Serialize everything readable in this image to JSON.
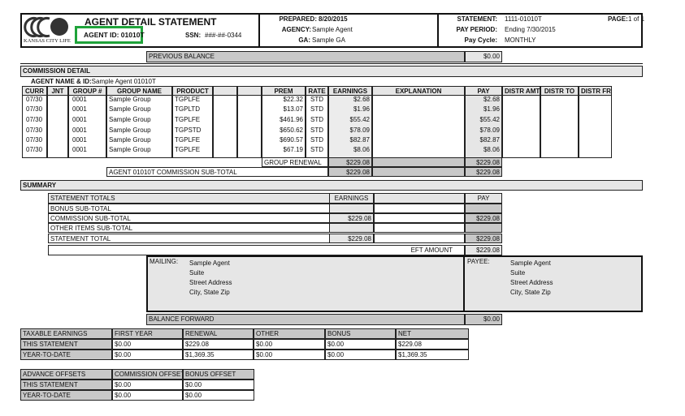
{
  "header": {
    "logo_text": "KANSAS CITY LIFE",
    "title": "AGENT DETAIL STATEMENT",
    "agent_id": "AGENT ID: 01010T",
    "ssn_label": "SSN:",
    "ssn_value": "###-##-0344",
    "prepared_label": "PREPARED:",
    "prepared_value": "8/20/2015",
    "agency_label": "AGENCY:",
    "agency_value": "Sample Agent",
    "ga_label": "GA:",
    "ga_value": "Sample GA",
    "statement_label": "STATEMENT:",
    "statement_value": "1111-01010T",
    "pay_period_label": "PAY PERIOD:",
    "pay_period_value": "Ending 7/30/2015",
    "pay_cycle_label": "Pay Cycle:",
    "pay_cycle_value": "MONTHLY",
    "page_label": "PAGE:",
    "page_value": "1 of 1",
    "highlight_color": "#1fa33a"
  },
  "previous_balance": {
    "label": "PREVIOUS BALANCE",
    "value": "$0.00"
  },
  "commission": {
    "section_title": "COMMISSION DETAIL",
    "agent_label": "AGENT NAME & ID:",
    "agent_value": "Sample Agent 01010T",
    "columns": [
      "CURR",
      "JNT",
      "GROUP #",
      "GROUP NAME",
      "PRODUCT",
      "",
      "",
      "PREM",
      "RATE",
      "EARNINGS",
      "EXPLANATION",
      "PAY",
      "DISTR AMT",
      "DISTR TO",
      "DISTR FR"
    ],
    "rows": [
      [
        "07/30",
        "",
        "0001",
        "Sample Group",
        "TGPLFE",
        "",
        "",
        "$22.32",
        "STD",
        "$2.68",
        "",
        "$2.68",
        "",
        "",
        ""
      ],
      [
        "07/30",
        "",
        "0001",
        "Sample Group",
        "TGPLTD",
        "",
        "",
        "$13.07",
        "STD",
        "$1.96",
        "",
        "$1.96",
        "",
        "",
        ""
      ],
      [
        "07/30",
        "",
        "0001",
        "Sample Group",
        "TGPLFE",
        "",
        "",
        "$461.96",
        "STD",
        "$55.42",
        "",
        "$55.42",
        "",
        "",
        ""
      ],
      [
        "07/30",
        "",
        "0001",
        "Sample Group",
        "TGPSTD",
        "",
        "",
        "$650.62",
        "STD",
        "$78.09",
        "",
        "$78.09",
        "",
        "",
        ""
      ],
      [
        "07/30",
        "",
        "0001",
        "Sample Group",
        "TGPLFE",
        "",
        "",
        "$690.57",
        "STD",
        "$82.87",
        "",
        "$82.87",
        "",
        "",
        ""
      ],
      [
        "07/30",
        "",
        "0001",
        "Sample Group",
        "TGPLFE",
        "",
        "",
        "$67.19",
        "STD",
        "$8.06",
        "",
        "$8.06",
        "",
        "",
        ""
      ]
    ],
    "group_renewal_label": "GROUP RENEWAL",
    "group_renewal_earnings": "$229.08",
    "group_renewal_pay": "$229.08",
    "subtotal_label": "AGENT 01010T COMMISSION SUB-TOTAL",
    "subtotal_earnings": "$229.08",
    "subtotal_pay": "$229.08"
  },
  "summary": {
    "section_title": "SUMMARY",
    "header": {
      "label": "STATEMENT TOTALS",
      "earnings": "EARNINGS",
      "pay": "PAY"
    },
    "rows": [
      {
        "label": "BONUS SUB-TOTAL",
        "earnings": "",
        "pay": ""
      },
      {
        "label": "COMMISSION SUB-TOTAL",
        "earnings": "$229.08",
        "pay": "$229.08"
      },
      {
        "label": "OTHER ITEMS SUB-TOTAL",
        "earnings": "",
        "pay": ""
      },
      {
        "label": "STATEMENT TOTAL",
        "earnings": "$229.08",
        "pay": "$229.08"
      }
    ],
    "eft_label": "EFT AMOUNT",
    "eft_value": "$229.08"
  },
  "mailing": {
    "label": "MAILING:",
    "lines": [
      "Sample Agent",
      "Suite",
      "Street Address",
      "City, State Zip"
    ]
  },
  "payee": {
    "label": "PAYEE:",
    "lines": [
      "Sample Agent",
      "Suite",
      "Street Address",
      "City, State Zip"
    ]
  },
  "balance_forward": {
    "label": "BALANCE FORWARD",
    "value": "$0.00"
  },
  "taxable": {
    "columns": [
      "TAXABLE EARNINGS",
      "FIRST YEAR",
      "RENEWAL",
      "OTHER",
      "BONUS",
      "NET"
    ],
    "rows": [
      [
        "THIS STATEMENT",
        "$0.00",
        "$229.08",
        "$0.00",
        "$0.00",
        "$229.08"
      ],
      [
        "YEAR-TO-DATE",
        "$0.00",
        "$1,369.35",
        "$0.00",
        "$0.00",
        "$1,369.35"
      ]
    ]
  },
  "offsets": {
    "columns": [
      "ADVANCE OFFSETS",
      "COMMISSION OFFSET",
      "BONUS OFFSET"
    ],
    "rows": [
      [
        "THIS STATEMENT",
        "$0.00",
        "$0.00"
      ],
      [
        "YEAR-TO-DATE",
        "$0.00",
        "$0.00"
      ]
    ]
  }
}
